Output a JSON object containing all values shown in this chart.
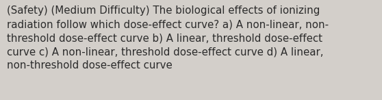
{
  "lines": [
    "(Safety) (Medium Difficulty) The biological effects of ionizing",
    "radiation follow which dose-effect curve? a) A non-linear, non-",
    "threshold dose-effect curve b) A linear, threshold dose-effect",
    "curve c) A non-linear, threshold dose-effect curve d) A linear,",
    "non-threshold dose-effect curve"
  ],
  "background_color": "#d3cfca",
  "text_color": "#2b2b2b",
  "font_size": 10.8,
  "fig_width": 5.58,
  "fig_height": 1.46,
  "dpi": 100
}
